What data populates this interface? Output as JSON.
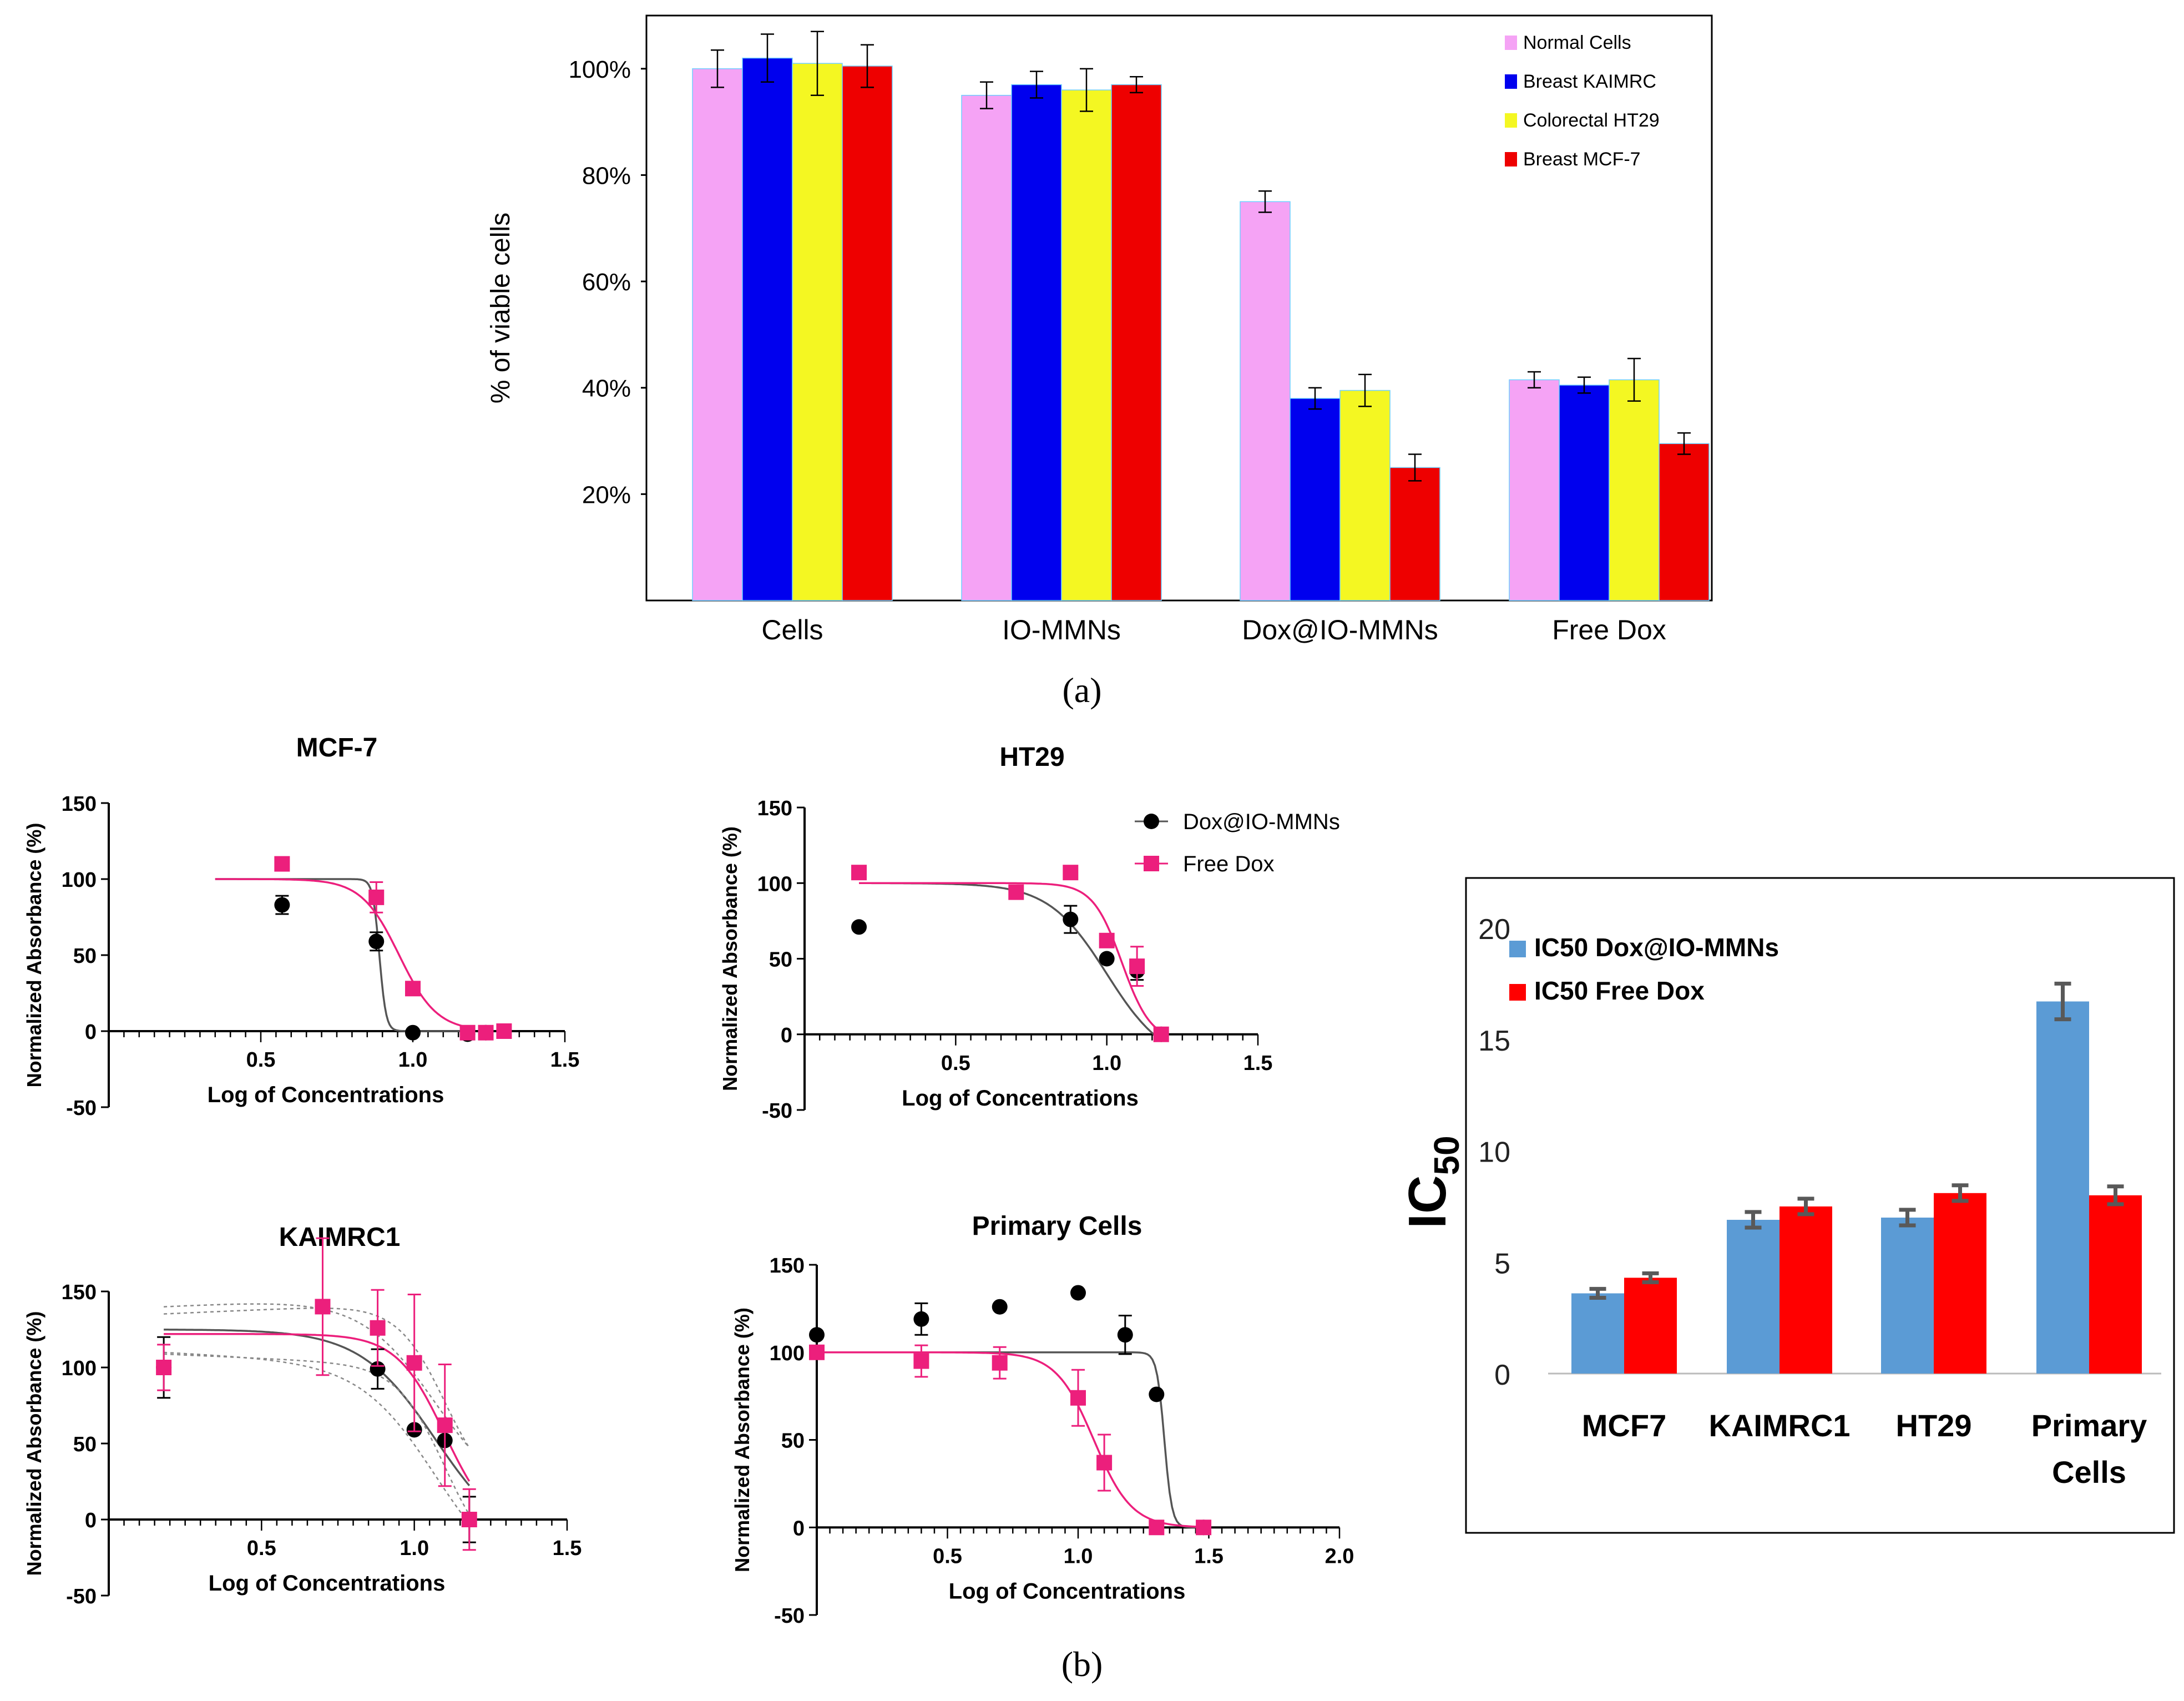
{
  "panel_labels": {
    "a": "(a)",
    "b": "(b)"
  },
  "colors": {
    "normal": "#f5a3f5",
    "kaimrc": "#0000ee",
    "ht29": "#f4f722",
    "mcf7": "#ee0000",
    "dox": "#000000",
    "free": "#ec1f7c",
    "ic_dox": "#5b9bd5",
    "ic_free": "#ff0000"
  },
  "chart_data": [
    {
      "id": "viability",
      "type": "bar",
      "ylabel": "% of viable cells",
      "categories": [
        "Cells",
        "IO-MMNs",
        "Dox@IO-MMNs",
        "Free Dox"
      ],
      "yticks": [
        "20%",
        "40%",
        "60%",
        "80%",
        "100%"
      ],
      "ytick_values": [
        20,
        40,
        60,
        80,
        100
      ],
      "ylim": [
        0,
        110
      ],
      "legend_position": "top-right",
      "series": [
        {
          "name": "Normal Cells",
          "color": "#f5a3f5",
          "values": [
            100,
            95,
            75,
            41.5
          ],
          "errors": [
            3.5,
            2.5,
            2,
            1.5
          ]
        },
        {
          "name": "Breast KAIMRC",
          "color": "#0000ee",
          "values": [
            102,
            97,
            38,
            40.5
          ],
          "errors": [
            4.5,
            2.5,
            2,
            1.5
          ]
        },
        {
          "name": "Colorectal HT29",
          "color": "#f4f722",
          "values": [
            101,
            96,
            39.5,
            41.5
          ],
          "errors": [
            6,
            4,
            3,
            4
          ]
        },
        {
          "name": "Breast MCF-7",
          "color": "#ee0000",
          "values": [
            100.5,
            97,
            25,
            29.5
          ],
          "errors": [
            4,
            1.5,
            2.5,
            2
          ]
        }
      ]
    },
    {
      "id": "mcf7",
      "type": "scatter",
      "title": "MCF-7",
      "xlabel": "Log of Concentrations",
      "ylabel": "Normalized Absorbance (%)",
      "xlim": [
        0,
        1.5
      ],
      "ylim": [
        -50,
        150
      ],
      "xticks": [
        "0.5",
        "1.0",
        "1.5"
      ],
      "xtick_values": [
        0.5,
        1.0,
        1.5
      ],
      "yticks": [
        "-50",
        "0",
        "50",
        "100",
        "150"
      ],
      "ytick_values": [
        -50,
        0,
        50,
        100,
        150
      ],
      "series": [
        {
          "name": "Dox@IO-MMNs",
          "marker": "circle",
          "x": [
            0.57,
            0.88,
            1.0,
            1.18,
            1.24,
            1.3
          ],
          "y": [
            83,
            59,
            -1,
            -2,
            -1,
            0
          ],
          "err": [
            6,
            6,
            0,
            0,
            0,
            0
          ]
        },
        {
          "name": "Free Dox",
          "marker": "square",
          "x": [
            0.57,
            0.88,
            1.0,
            1.18,
            1.24,
            1.3
          ],
          "y": [
            110,
            88,
            28,
            -1,
            -1,
            0
          ],
          "err": [
            0,
            10,
            0,
            0,
            0,
            0
          ]
        }
      ],
      "fits": [
        {
          "series": "Dox@IO-MMNs",
          "top": 100,
          "bottom": 0,
          "logec50": 0.89,
          "hill": -40,
          "from": 0.35,
          "to": 1.2
        },
        {
          "series": "Free Dox",
          "top": 100,
          "bottom": 0,
          "logec50": 0.955,
          "hill": -7,
          "from": 0.35,
          "to": 1.2
        }
      ]
    },
    {
      "id": "ht29",
      "type": "scatter",
      "title": "HT29",
      "xlabel": "Log of Concentrations",
      "ylabel": "Normalized Absorbance (%)",
      "xlim": [
        0,
        1.5
      ],
      "ylim": [
        -50,
        150
      ],
      "xticks": [
        "0.5",
        "1.0",
        "1.5"
      ],
      "xtick_values": [
        0.5,
        1.0,
        1.5
      ],
      "yticks": [
        "-50",
        "0",
        "50",
        "100",
        "150"
      ],
      "ytick_values": [
        -50,
        0,
        50,
        100,
        150
      ],
      "legend": [
        {
          "label": "Dox@IO-MMNs",
          "marker": "circle"
        },
        {
          "label": "Free Dox",
          "marker": "square"
        }
      ],
      "series": [
        {
          "name": "Dox@IO-MMNs",
          "marker": "circle",
          "x": [
            0.18,
            0.88,
            1.0,
            1.1,
            1.18
          ],
          "y": [
            71,
            76,
            50,
            42,
            0
          ],
          "err": [
            0,
            9,
            0,
            6,
            0
          ]
        },
        {
          "name": "Free Dox",
          "marker": "square",
          "x": [
            0.18,
            0.7,
            0.88,
            1.0,
            1.1,
            1.18
          ],
          "y": [
            107,
            94,
            107,
            62,
            45,
            0
          ],
          "err": [
            0,
            0,
            0,
            0,
            13,
            0
          ]
        }
      ],
      "fits": [
        {
          "series": "Dox@IO-MMNs",
          "top": 100,
          "bottom": -20,
          "logec50": 1.0,
          "hill": -4.5,
          "from": 0.18,
          "to": 1.18
        },
        {
          "series": "Free Dox",
          "top": 100,
          "bottom": -5,
          "logec50": 1.05,
          "hill": -9,
          "from": 0.18,
          "to": 1.18
        }
      ]
    },
    {
      "id": "kaimrc1",
      "type": "scatter",
      "title": "KAIMRC1",
      "xlabel": "Log of Concentrations",
      "ylabel": "Normalized Absorbance (%)",
      "xlim": [
        0,
        1.5
      ],
      "ylim": [
        -50,
        150
      ],
      "xticks": [
        "0.5",
        "1.0",
        "1.5"
      ],
      "xtick_values": [
        0.5,
        1.0,
        1.5
      ],
      "yticks": [
        "-50",
        "0",
        "50",
        "100",
        "150"
      ],
      "ytick_values": [
        -50,
        0,
        50,
        100,
        150
      ],
      "series": [
        {
          "name": "Dox@IO-MMNs",
          "marker": "circle",
          "x": [
            0.18,
            0.88,
            1.0,
            1.1,
            1.18
          ],
          "y": [
            100,
            99,
            59,
            52,
            0
          ],
          "err": [
            20,
            13,
            0,
            0,
            15
          ]
        },
        {
          "name": "Free Dox",
          "marker": "square",
          "x": [
            0.18,
            0.7,
            0.88,
            1.0,
            1.1,
            1.18
          ],
          "y": [
            100,
            140,
            126,
            103,
            62,
            0
          ],
          "err": [
            15,
            45,
            25,
            45,
            40,
            20
          ]
        }
      ],
      "fits": [
        {
          "series": "Dox@IO-MMNs",
          "top": 125,
          "bottom": -20,
          "logec50": 1.07,
          "hill": -3.5,
          "from": 0.18,
          "to": 1.18,
          "band": [
            25,
            12
          ]
        },
        {
          "series": "Free Dox",
          "top": 122,
          "bottom": -10,
          "logec50": 1.1,
          "hill": -5.5,
          "from": 0.18,
          "to": 1.18,
          "band": [
            22,
            10
          ]
        }
      ]
    },
    {
      "id": "primary",
      "type": "scatter",
      "title": "Primary Cells",
      "xlabel": "Log of Concentrations",
      "ylabel": "Normalized Absorbance (%)",
      "xlim": [
        0,
        2.0
      ],
      "ylim": [
        -50,
        150
      ],
      "xticks": [
        "0.5",
        "1.0",
        "1.5",
        "2.0"
      ],
      "xtick_values": [
        0.5,
        1.0,
        1.5,
        2.0
      ],
      "yticks": [
        "-50",
        "0",
        "50",
        "100",
        "150"
      ],
      "ytick_values": [
        -50,
        0,
        50,
        100,
        150
      ],
      "series": [
        {
          "name": "Dox@IO-MMNs",
          "marker": "circle",
          "x": [
            0.0,
            0.4,
            0.7,
            1.0,
            1.18,
            1.3,
            1.48
          ],
          "y": [
            110,
            119,
            126,
            134,
            110,
            76,
            0
          ],
          "err": [
            0,
            9,
            0,
            0,
            11,
            0,
            0
          ]
        },
        {
          "name": "Free Dox",
          "marker": "square",
          "x": [
            0.0,
            0.4,
            0.7,
            1.0,
            1.1,
            1.3,
            1.48
          ],
          "y": [
            100,
            95,
            94,
            74,
            37,
            0,
            0
          ],
          "err": [
            0,
            9,
            9,
            16,
            16,
            0,
            0
          ]
        }
      ],
      "fits": [
        {
          "series": "Dox@IO-MMNs",
          "top": 100,
          "bottom": 0,
          "logec50": 1.33,
          "hill": -30,
          "from": 0.0,
          "to": 1.5
        },
        {
          "series": "Free Dox",
          "top": 100,
          "bottom": 0,
          "logec50": 1.06,
          "hill": -6,
          "from": 0.0,
          "to": 1.5
        }
      ]
    },
    {
      "id": "ic50",
      "type": "bar",
      "ylabel_main": "IC",
      "ylabel_sub": "50",
      "categories": [
        "MCF7",
        "KAIMRC1",
        "HT29",
        "Primary"
      ],
      "category_second_line": [
        "",
        "",
        "",
        "Cells"
      ],
      "ylim": [
        0,
        20
      ],
      "yticks": [
        "0",
        "5",
        "10",
        "15",
        "20"
      ],
      "ytick_values": [
        0,
        5,
        10,
        15,
        20
      ],
      "legend_position": "top-left",
      "series": [
        {
          "name": "IC50 Dox@IO-MMNs",
          "color": "#5b9bd5",
          "values": [
            3.6,
            6.9,
            7.0,
            16.7
          ],
          "errors": [
            0.2,
            0.35,
            0.35,
            0.8
          ]
        },
        {
          "name": "IC50 Free Dox",
          "color": "#ff0000",
          "values": [
            4.3,
            7.5,
            8.1,
            8.0
          ],
          "errors": [
            0.2,
            0.35,
            0.35,
            0.4
          ]
        }
      ]
    }
  ]
}
